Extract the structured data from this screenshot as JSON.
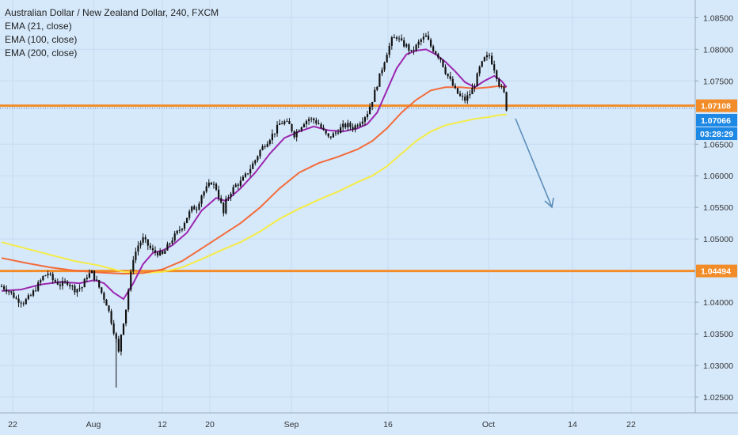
{
  "chart_data": {
    "type": "candlestick",
    "symbol_title": "Australian Dollar / New Zealand Dollar, 240, FXCM",
    "indicators": [
      {
        "label": "EMA (21, close)",
        "color": "#9c27b0"
      },
      {
        "label": "EMA (100, close)",
        "color": "#f26b3a"
      },
      {
        "label": "EMA (200, close)",
        "color": "#f5eb45"
      }
    ],
    "y_axis": {
      "ticks": [
        "1.08500",
        "1.08000",
        "1.07500",
        "1.06500",
        "1.06000",
        "1.05500",
        "1.05000",
        "1.04000",
        "1.03500",
        "1.03000",
        "1.02500"
      ],
      "range": [
        1.0225,
        1.0878
      ]
    },
    "x_axis": {
      "ticks": [
        "22",
        "Aug",
        "12",
        "20",
        "Sep",
        "16",
        "Oct",
        "14",
        "22"
      ]
    },
    "horizontal_levels": [
      {
        "value": 1.07108,
        "label": "1.07108",
        "color": "#f28c28"
      },
      {
        "value": 1.04494,
        "label": "1.04494",
        "color": "#f28c28"
      }
    ],
    "last_price": {
      "value": 1.07066,
      "label": "1.07066",
      "countdown": "03:28:29",
      "color": "#1e88e5"
    },
    "annotation": {
      "type": "arrow",
      "direction": "down",
      "color": "#5b8db8"
    },
    "price_path": [
      [
        0,
        1.0425
      ],
      [
        3,
        1.0418
      ],
      [
        6,
        1.0405
      ],
      [
        9,
        1.04
      ],
      [
        12,
        1.041
      ],
      [
        15,
        1.0428
      ],
      [
        17,
        1.044
      ],
      [
        19,
        1.0446
      ],
      [
        21,
        1.0435
      ],
      [
        24,
        1.0428
      ],
      [
        27,
        1.0432
      ],
      [
        30,
        1.042
      ],
      [
        33,
        1.0424
      ],
      [
        35,
        1.0442
      ],
      [
        37,
        1.0447
      ],
      [
        39,
        1.0432
      ],
      [
        41,
        1.0415
      ],
      [
        43,
        1.0398
      ],
      [
        44,
        1.0385
      ],
      [
        45,
        1.037
      ],
      [
        46,
        1.0355
      ],
      [
        47,
        1.034
      ],
      [
        48,
        1.032
      ],
      [
        49,
        1.035
      ],
      [
        50,
        1.037
      ],
      [
        51,
        1.039
      ],
      [
        52,
        1.042
      ],
      [
        53,
        1.0445
      ],
      [
        54,
        1.047
      ],
      [
        56,
        1.049
      ],
      [
        58,
        1.05
      ],
      [
        60,
        1.049
      ],
      [
        62,
        1.048
      ],
      [
        64,
        1.0478
      ],
      [
        66,
        1.0475
      ],
      [
        68,
        1.0488
      ],
      [
        70,
        1.05
      ],
      [
        72,
        1.051
      ],
      [
        74,
        1.052
      ],
      [
        76,
        1.0535
      ],
      [
        78,
        1.0548
      ],
      [
        80,
        1.055
      ],
      [
        82,
        1.057
      ],
      [
        84,
        1.058
      ],
      [
        86,
        1.059
      ],
      [
        88,
        1.058
      ],
      [
        90,
        1.0555
      ],
      [
        91,
        1.054
      ],
      [
        92,
        1.056
      ],
      [
        94,
        1.0575
      ],
      [
        96,
        1.0585
      ],
      [
        98,
        1.059
      ],
      [
        100,
        1.06
      ],
      [
        102,
        1.0612
      ],
      [
        104,
        1.0625
      ],
      [
        106,
        1.064
      ],
      [
        108,
        1.065
      ],
      [
        110,
        1.066
      ],
      [
        112,
        1.067
      ],
      [
        114,
        1.0682
      ],
      [
        116,
        1.0685
      ],
      [
        118,
        1.068
      ],
      [
        120,
        1.0665
      ],
      [
        122,
        1.0675
      ],
      [
        124,
        1.0685
      ],
      [
        126,
        1.069
      ],
      [
        128,
        1.0688
      ],
      [
        130,
        1.0682
      ],
      [
        132,
        1.067
      ],
      [
        134,
        1.066
      ],
      [
        136,
        1.0665
      ],
      [
        138,
        1.0672
      ],
      [
        140,
        1.0678
      ],
      [
        142,
        1.068
      ],
      [
        144,
        1.0676
      ],
      [
        146,
        1.0682
      ],
      [
        148,
        1.069
      ],
      [
        150,
        1.07
      ],
      [
        152,
        1.072
      ],
      [
        154,
        1.0745
      ],
      [
        156,
        1.077
      ],
      [
        158,
        1.0795
      ],
      [
        160,
        1.0815
      ],
      [
        162,
        1.082
      ],
      [
        164,
        1.081
      ],
      [
        166,
        1.0805
      ],
      [
        168,
        1.0795
      ],
      [
        170,
        1.0805
      ],
      [
        172,
        1.0815
      ],
      [
        174,
        1.082
      ],
      [
        176,
        1.0805
      ],
      [
        178,
        1.0795
      ],
      [
        180,
        1.0785
      ],
      [
        182,
        1.0765
      ],
      [
        184,
        1.075
      ],
      [
        186,
        1.0735
      ],
      [
        188,
        1.0725
      ],
      [
        190,
        1.072
      ],
      [
        192,
        1.073
      ],
      [
        194,
        1.0745
      ],
      [
        196,
        1.077
      ],
      [
        198,
        1.0785
      ],
      [
        200,
        1.079
      ],
      [
        202,
        1.077
      ],
      [
        204,
        1.0745
      ],
      [
        206,
        1.073
      ],
      [
        207,
        1.07066
      ]
    ],
    "ema21": [
      [
        0,
        1.0418
      ],
      [
        8,
        1.042
      ],
      [
        16,
        1.0428
      ],
      [
        24,
        1.0432
      ],
      [
        32,
        1.043
      ],
      [
        38,
        1.0435
      ],
      [
        42,
        1.043
      ],
      [
        46,
        1.0415
      ],
      [
        50,
        1.0405
      ],
      [
        54,
        1.043
      ],
      [
        58,
        1.046
      ],
      [
        62,
        1.0478
      ],
      [
        66,
        1.0482
      ],
      [
        70,
        1.049
      ],
      [
        76,
        1.051
      ],
      [
        82,
        1.0545
      ],
      [
        88,
        1.0565
      ],
      [
        92,
        1.056
      ],
      [
        98,
        1.058
      ],
      [
        104,
        1.0605
      ],
      [
        110,
        1.0635
      ],
      [
        116,
        1.066
      ],
      [
        122,
        1.067
      ],
      [
        128,
        1.0678
      ],
      [
        134,
        1.0672
      ],
      [
        140,
        1.067
      ],
      [
        146,
        1.0675
      ],
      [
        150,
        1.0682
      ],
      [
        154,
        1.07
      ],
      [
        158,
        1.0735
      ],
      [
        162,
        1.077
      ],
      [
        166,
        1.0792
      ],
      [
        170,
        1.0798
      ],
      [
        174,
        1.08
      ],
      [
        178,
        1.0792
      ],
      [
        182,
        1.078
      ],
      [
        186,
        1.0765
      ],
      [
        190,
        1.0748
      ],
      [
        194,
        1.074
      ],
      [
        198,
        1.075
      ],
      [
        202,
        1.0758
      ],
      [
        205,
        1.075
      ],
      [
        207,
        1.074
      ]
    ],
    "ema100": [
      [
        0,
        1.047
      ],
      [
        10,
        1.0462
      ],
      [
        20,
        1.0455
      ],
      [
        30,
        1.045
      ],
      [
        40,
        1.0447
      ],
      [
        50,
        1.0445
      ],
      [
        58,
        1.0446
      ],
      [
        66,
        1.0452
      ],
      [
        74,
        1.0465
      ],
      [
        82,
        1.0485
      ],
      [
        90,
        1.0505
      ],
      [
        98,
        1.0525
      ],
      [
        106,
        1.055
      ],
      [
        114,
        1.058
      ],
      [
        122,
        1.0605
      ],
      [
        130,
        1.062
      ],
      [
        138,
        1.063
      ],
      [
        146,
        1.0642
      ],
      [
        152,
        1.0655
      ],
      [
        158,
        1.0675
      ],
      [
        164,
        1.07
      ],
      [
        170,
        1.072
      ],
      [
        176,
        1.0735
      ],
      [
        182,
        1.074
      ],
      [
        188,
        1.074
      ],
      [
        194,
        1.0738
      ],
      [
        200,
        1.074
      ],
      [
        204,
        1.0742
      ],
      [
        207,
        1.074
      ]
    ],
    "ema200": [
      [
        0,
        1.0495
      ],
      [
        10,
        1.0485
      ],
      [
        20,
        1.0475
      ],
      [
        30,
        1.0465
      ],
      [
        40,
        1.0458
      ],
      [
        50,
        1.0448
      ],
      [
        58,
        1.0446
      ],
      [
        66,
        1.0448
      ],
      [
        74,
        1.0455
      ],
      [
        82,
        1.0468
      ],
      [
        90,
        1.0482
      ],
      [
        98,
        1.0495
      ],
      [
        106,
        1.0512
      ],
      [
        114,
        1.0532
      ],
      [
        122,
        1.0548
      ],
      [
        130,
        1.0562
      ],
      [
        138,
        1.0575
      ],
      [
        146,
        1.059
      ],
      [
        152,
        1.06
      ],
      [
        158,
        1.0615
      ],
      [
        164,
        1.0635
      ],
      [
        170,
        1.0655
      ],
      [
        176,
        1.067
      ],
      [
        182,
        1.068
      ],
      [
        188,
        1.0685
      ],
      [
        194,
        1.069
      ],
      [
        200,
        1.0693
      ],
      [
        204,
        1.0696
      ],
      [
        207,
        1.0697
      ]
    ]
  }
}
